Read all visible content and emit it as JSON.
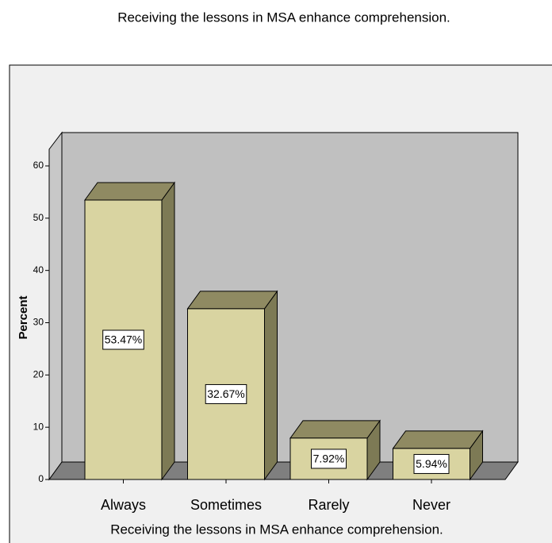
{
  "chart_data": {
    "type": "bar3d",
    "title": "Receiving the lessons in MSA enhance comprehension.",
    "x_label": "Receiving the lessons in MSA enhance comprehension.",
    "y_label": "Percent",
    "categories": [
      "Always",
      "Sometimes",
      "Rarely",
      "Never"
    ],
    "values": [
      53.47,
      32.67,
      7.92,
      5.94
    ],
    "value_labels": [
      "53.47%",
      "32.67%",
      "7.92%",
      "5.94%"
    ],
    "color": "#d9d4a1",
    "ylim": [
      0,
      60
    ],
    "yticks": [
      0,
      10,
      20,
      30,
      40,
      50,
      60
    ]
  }
}
